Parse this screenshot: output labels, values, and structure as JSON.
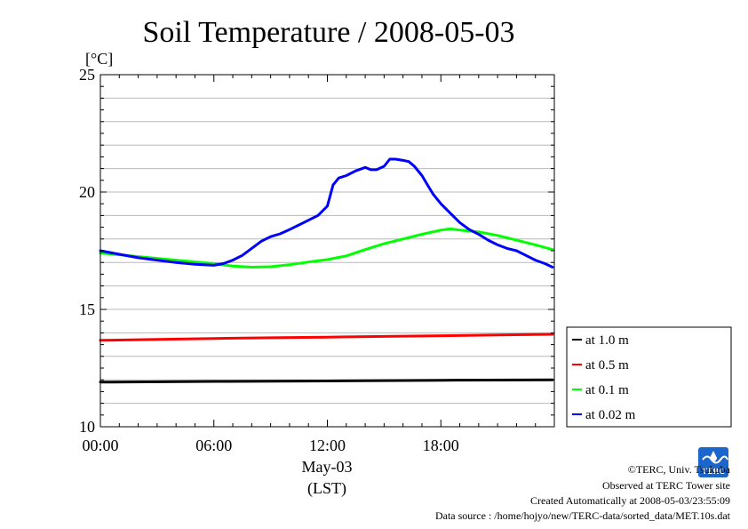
{
  "chart_data": {
    "type": "line",
    "title": "Soil Temperature / 2008-05-03",
    "ylabel": "[°C]",
    "xlabel_date": "May-03",
    "xlabel_unit": "(LST)",
    "xlim_hours": [
      0,
      24
    ],
    "ylim": [
      10,
      25
    ],
    "yticks": [
      10,
      15,
      20,
      25
    ],
    "xtick_hours": [
      0,
      6,
      12,
      18
    ],
    "xtick_labels": [
      "00:00",
      "06:00",
      "12:00",
      "18:00"
    ],
    "grid": true,
    "legend_position": "lower-right, outside plot",
    "series": [
      {
        "name": "at 1.0 m",
        "color": "#000000",
        "x_hours": [
          0,
          6,
          12,
          18,
          23.9
        ],
        "y": [
          11.9,
          11.93,
          11.95,
          11.98,
          12.0
        ]
      },
      {
        "name": "at 0.5 m",
        "color": "#ff0000",
        "x_hours": [
          0,
          3,
          6,
          9,
          12,
          15,
          18,
          21,
          23.9
        ],
        "y": [
          13.68,
          13.72,
          13.76,
          13.79,
          13.82,
          13.85,
          13.88,
          13.91,
          13.94
        ]
      },
      {
        "name": "at 0.1 m",
        "color": "#00ff00",
        "x_hours": [
          0,
          2,
          4,
          6,
          7,
          8,
          9,
          10,
          11,
          12,
          13,
          14,
          15,
          16,
          17,
          18,
          18.5,
          19,
          20,
          21,
          22,
          23,
          23.9
        ],
        "y": [
          17.4,
          17.25,
          17.1,
          16.95,
          16.85,
          16.8,
          16.82,
          16.9,
          17.02,
          17.12,
          17.28,
          17.55,
          17.8,
          18.0,
          18.2,
          18.38,
          18.43,
          18.38,
          18.3,
          18.15,
          17.95,
          17.75,
          17.55
        ]
      },
      {
        "name": "at 0.02 m",
        "color": "#0000ff",
        "x_hours": [
          0,
          1,
          2,
          3,
          4,
          5,
          6,
          6.5,
          7,
          7.5,
          8,
          8.5,
          9,
          9.5,
          10,
          10.5,
          11,
          11.5,
          12,
          12.3,
          12.6,
          13,
          13.5,
          14,
          14.3,
          14.6,
          15,
          15.3,
          15.6,
          16,
          16.3,
          16.6,
          17,
          17.3,
          17.6,
          18,
          18.5,
          19,
          19.5,
          20,
          20.5,
          21,
          21.5,
          22,
          22.5,
          23,
          23.5,
          23.9
        ],
        "y": [
          17.5,
          17.35,
          17.2,
          17.1,
          17.0,
          16.92,
          16.88,
          16.95,
          17.1,
          17.3,
          17.6,
          17.9,
          18.1,
          18.22,
          18.4,
          18.6,
          18.8,
          19.0,
          19.4,
          20.3,
          20.6,
          20.7,
          20.9,
          21.05,
          20.95,
          20.95,
          21.1,
          21.4,
          21.4,
          21.35,
          21.3,
          21.1,
          20.7,
          20.3,
          19.9,
          19.5,
          19.1,
          18.7,
          18.4,
          18.2,
          17.95,
          17.75,
          17.6,
          17.5,
          17.3,
          17.1,
          16.95,
          16.8
        ]
      }
    ]
  },
  "footer": {
    "copyright": "©TERC, Univ. Tsukuba",
    "observed": "Observed at TERC Tower site",
    "created": "Created Automatically at 2008-05-03/23:55:09",
    "source": "Data source : /home/hojyo/new/TERC-data/sorted_data/MET.10s.dat"
  },
  "logo": {
    "text": "TERC",
    "color": "#1a66cc"
  }
}
